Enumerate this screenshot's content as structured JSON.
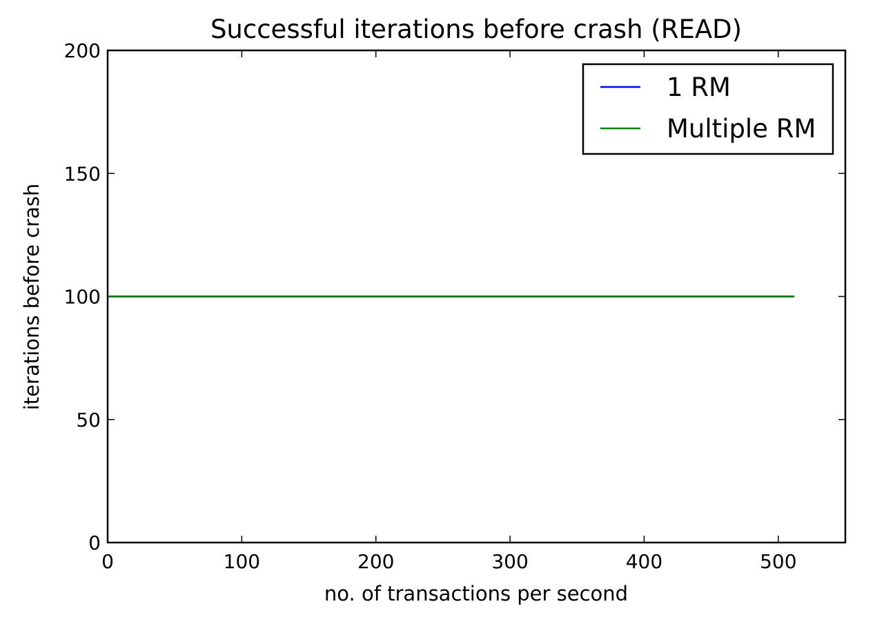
{
  "chart_data": {
    "type": "line",
    "title": "Successful iterations before crash (READ)",
    "xlabel": "no. of transactions per second",
    "ylabel": "iterations before crash",
    "xlim": [
      0,
      550
    ],
    "ylim": [
      0,
      200
    ],
    "xticks": [
      0,
      100,
      200,
      300,
      400,
      500
    ],
    "yticks": [
      0,
      50,
      100,
      150,
      200
    ],
    "grid": false,
    "legend_position": "top-right",
    "series": [
      {
        "name": "1 RM",
        "color": "#0000ff",
        "x": [
          1,
          512
        ],
        "y": [
          100,
          100
        ]
      },
      {
        "name": "Multiple RM",
        "color": "#008000",
        "x": [
          1,
          512
        ],
        "y": [
          100,
          100
        ]
      }
    ]
  }
}
